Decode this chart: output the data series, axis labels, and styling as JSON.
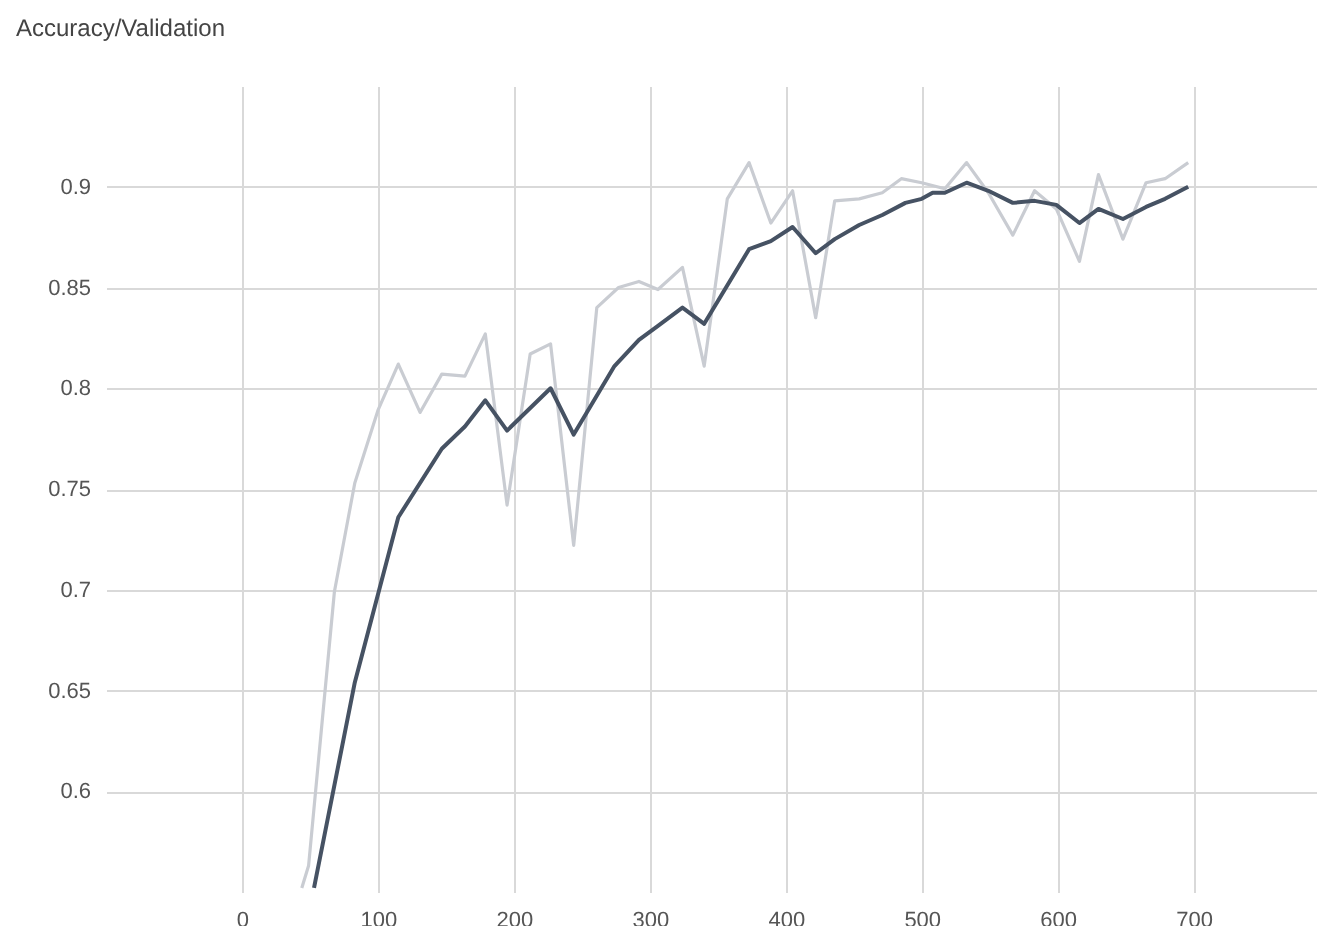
{
  "chart_data": {
    "type": "line",
    "title": "Accuracy/Validation",
    "xlim": [
      -100,
      790
    ],
    "xticks": [
      0,
      100,
      200,
      300,
      400,
      500,
      600,
      700
    ],
    "ylim": [
      0.55,
      0.95
    ],
    "yticks": [
      0.6,
      0.65,
      0.7,
      0.75,
      0.8,
      0.85,
      0.9
    ],
    "grid": true,
    "marker": "none",
    "line_style": "solid",
    "series": [
      {
        "color": "#c9ccd2",
        "x": [
          44,
          49,
          61,
          68,
          83,
          100,
          115,
          131,
          147,
          164,
          179,
          195,
          212,
          227,
          244,
          261,
          277,
          292,
          306,
          324,
          340,
          357,
          373,
          389,
          405,
          422,
          436,
          454,
          471,
          485,
          500,
          517,
          533,
          549,
          567,
          583,
          599,
          616,
          630,
          648,
          665,
          679,
          696
        ],
        "values": [
          0.552,
          0.563,
          0.649,
          0.699,
          0.753,
          0.789,
          0.812,
          0.788,
          0.807,
          0.806,
          0.827,
          0.742,
          0.817,
          0.822,
          0.722,
          0.84,
          0.85,
          0.853,
          0.849,
          0.86,
          0.811,
          0.894,
          0.912,
          0.882,
          0.898,
          0.835,
          0.893,
          0.894,
          0.897,
          0.904,
          0.902,
          0.899,
          0.912,
          0.897,
          0.876,
          0.898,
          0.889,
          0.863,
          0.906,
          0.874,
          0.902,
          0.904,
          0.912
        ]
      },
      {
        "color": "#465263",
        "x": [
          53,
          83,
          115,
          147,
          164,
          179,
          195,
          227,
          244,
          274,
          292,
          306,
          324,
          340,
          373,
          389,
          405,
          422,
          436,
          454,
          471,
          488,
          500,
          508,
          517,
          533,
          549,
          567,
          583,
          599,
          616,
          630,
          648,
          665,
          679,
          696
        ],
        "values": [
          0.552,
          0.654,
          0.736,
          0.77,
          0.781,
          0.794,
          0.779,
          0.8,
          0.777,
          0.811,
          0.824,
          0.831,
          0.84,
          0.832,
          0.869,
          0.873,
          0.88,
          0.867,
          0.874,
          0.881,
          0.886,
          0.892,
          0.894,
          0.897,
          0.897,
          0.902,
          0.898,
          0.892,
          0.893,
          0.891,
          0.882,
          0.889,
          0.884,
          0.89,
          0.894,
          0.9
        ]
      }
    ]
  }
}
